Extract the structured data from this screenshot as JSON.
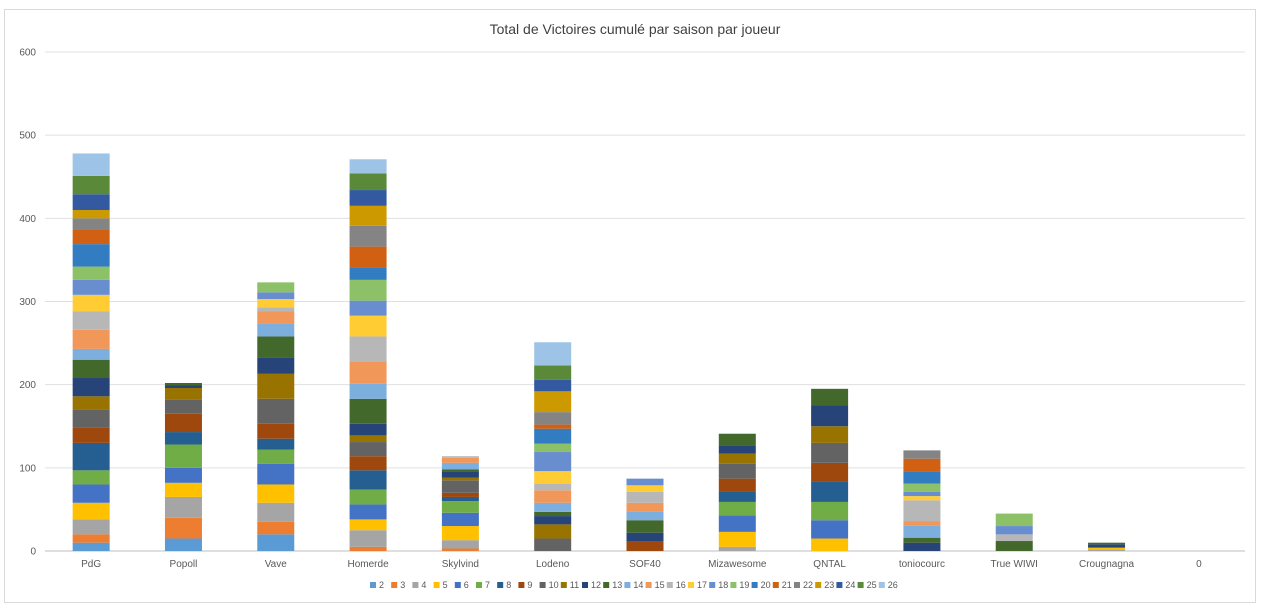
{
  "chart_data": {
    "type": "bar",
    "stacked": true,
    "title": "Total de Victoires cumulé par saison par joueur",
    "xlabel": "",
    "ylabel": "",
    "ylim": [
      0,
      600
    ],
    "yticks": [
      0,
      100,
      200,
      300,
      400,
      500,
      600
    ],
    "grid": true,
    "legend_position": "bottom",
    "categories": [
      "PdG",
      "Popoll",
      "Vave",
      "Homerde",
      "Skylvind",
      "Lodeno",
      "SOF40",
      "Mizawesome",
      "QNTAL",
      "toniocourc",
      "True WIWI",
      "Crougnagna",
      "0"
    ],
    "series": [
      {
        "name": "2",
        "color": "#5B9BD5",
        "values": [
          10,
          15,
          20,
          0,
          0,
          0,
          0,
          0,
          0,
          0,
          0,
          0,
          0
        ]
      },
      {
        "name": "3",
        "color": "#ED7D31",
        "values": [
          10,
          25,
          15,
          5,
          3,
          0,
          0,
          0,
          0,
          0,
          0,
          0,
          0
        ]
      },
      {
        "name": "4",
        "color": "#A5A5A5",
        "values": [
          18,
          25,
          23,
          20,
          10,
          0,
          0,
          5,
          0,
          0,
          0,
          2,
          0
        ]
      },
      {
        "name": "5",
        "color": "#FFC000",
        "values": [
          20,
          17,
          22,
          13,
          17,
          0,
          0,
          18,
          15,
          0,
          0,
          2,
          0
        ]
      },
      {
        "name": "6",
        "color": "#4472C4",
        "values": [
          22,
          18,
          25,
          18,
          16,
          0,
          0,
          20,
          22,
          0,
          0,
          0,
          0
        ]
      },
      {
        "name": "7",
        "color": "#70AD47",
        "values": [
          17,
          28,
          17,
          18,
          14,
          0,
          0,
          16,
          22,
          0,
          0,
          0,
          0
        ]
      },
      {
        "name": "8",
        "color": "#255E91",
        "values": [
          33,
          15,
          13,
          23,
          5,
          0,
          0,
          12,
          25,
          0,
          0,
          0,
          0
        ]
      },
      {
        "name": "9",
        "color": "#9E480E",
        "values": [
          18,
          22,
          18,
          17,
          5,
          0,
          12,
          16,
          22,
          0,
          0,
          0,
          0
        ]
      },
      {
        "name": "10",
        "color": "#636363",
        "values": [
          22,
          17,
          30,
          17,
          15,
          15,
          0,
          18,
          24,
          0,
          0,
          0,
          0
        ]
      },
      {
        "name": "11",
        "color": "#997300",
        "values": [
          16,
          14,
          30,
          8,
          3,
          17,
          0,
          12,
          20,
          0,
          0,
          0,
          0
        ]
      },
      {
        "name": "12",
        "color": "#264478",
        "values": [
          22,
          3,
          20,
          14,
          8,
          10,
          10,
          10,
          25,
          10,
          0,
          4,
          0
        ]
      },
      {
        "name": "13",
        "color": "#43682B",
        "values": [
          22,
          3,
          25,
          30,
          2,
          5,
          15,
          14,
          20,
          6,
          12,
          2,
          0
        ]
      },
      {
        "name": "14",
        "color": "#7CAFDD",
        "values": [
          13,
          0,
          15,
          18,
          8,
          11,
          10,
          0,
          0,
          15,
          0,
          0,
          0
        ]
      },
      {
        "name": "15",
        "color": "#F1975A",
        "values": [
          23,
          0,
          15,
          27,
          6,
          15,
          11,
          0,
          0,
          5,
          0,
          0,
          0
        ]
      },
      {
        "name": "16",
        "color": "#B7B7B7",
        "values": [
          22,
          0,
          5,
          30,
          2,
          8,
          13,
          0,
          0,
          25,
          8,
          0,
          0
        ]
      },
      {
        "name": "17",
        "color": "#FFCD33",
        "values": [
          20,
          0,
          10,
          25,
          0,
          15,
          8,
          0,
          0,
          5,
          0,
          0,
          0
        ]
      },
      {
        "name": "18",
        "color": "#698ED0",
        "values": [
          18,
          0,
          8,
          18,
          0,
          23,
          8,
          0,
          0,
          5,
          10,
          0,
          0
        ]
      },
      {
        "name": "19",
        "color": "#8CC168",
        "values": [
          16,
          0,
          12,
          25,
          0,
          10,
          0,
          0,
          0,
          10,
          15,
          0,
          0
        ]
      },
      {
        "name": "20",
        "color": "#327DC2",
        "values": [
          27,
          0,
          0,
          15,
          0,
          18,
          0,
          0,
          0,
          15,
          0,
          0,
          0
        ]
      },
      {
        "name": "21",
        "color": "#D26012",
        "values": [
          17,
          0,
          0,
          25,
          0,
          5,
          0,
          0,
          0,
          15,
          0,
          0,
          0
        ]
      },
      {
        "name": "22",
        "color": "#848484",
        "values": [
          14,
          0,
          0,
          25,
          0,
          15,
          0,
          0,
          0,
          10,
          0,
          0,
          0
        ]
      },
      {
        "name": "23",
        "color": "#CC9A00",
        "values": [
          10,
          0,
          0,
          24,
          0,
          25,
          0,
          0,
          0,
          0,
          0,
          0,
          0
        ]
      },
      {
        "name": "24",
        "color": "#335AA1",
        "values": [
          19,
          0,
          0,
          19,
          0,
          14,
          0,
          0,
          0,
          0,
          0,
          0,
          0
        ]
      },
      {
        "name": "25",
        "color": "#5A8A39",
        "values": [
          22,
          0,
          0,
          20,
          0,
          17,
          0,
          0,
          0,
          0,
          0,
          0,
          0
        ]
      },
      {
        "name": "26",
        "color": "#9DC3E6",
        "values": [
          27,
          0,
          0,
          17,
          0,
          28,
          0,
          0,
          0,
          0,
          0,
          0,
          0
        ]
      }
    ]
  }
}
